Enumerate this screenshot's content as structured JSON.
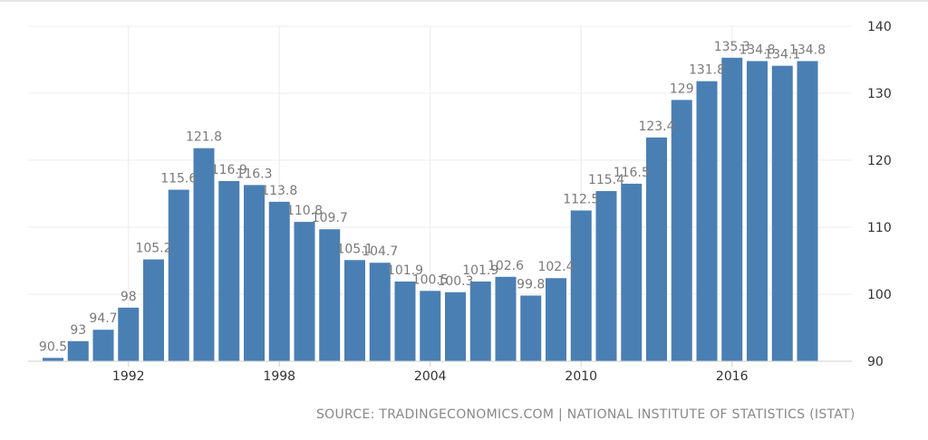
{
  "chart_data": {
    "type": "bar",
    "x": [
      1989,
      1990,
      1991,
      1992,
      1993,
      1994,
      1995,
      1996,
      1997,
      1998,
      1999,
      2000,
      2001,
      2002,
      2003,
      2004,
      2005,
      2006,
      2007,
      2008,
      2009,
      2010,
      2011,
      2012,
      2013,
      2014,
      2015,
      2016,
      2017,
      2018,
      2019
    ],
    "values": [
      90.5,
      93,
      94.7,
      98,
      105.2,
      115.6,
      121.8,
      116.9,
      116.3,
      113.8,
      110.8,
      109.7,
      105.1,
      104.7,
      101.9,
      100.5,
      100.3,
      101.9,
      102.6,
      99.8,
      102.4,
      112.5,
      115.4,
      116.5,
      123.4,
      129,
      131.8,
      135.3,
      134.8,
      134.1,
      134.8
    ],
    "data_labels": [
      "90.5",
      "93",
      "94.7",
      "98",
      "105.2",
      "115.6",
      "121.8",
      "116.9",
      "116.3",
      "113.8",
      "110.8",
      "109.7",
      "105.1",
      "104.7",
      "101.9",
      "100.5",
      "100.3",
      "101.9",
      "102.6",
      "99.8",
      "102.4",
      "112.5",
      "115.4",
      "116.5",
      "123.4",
      "129",
      "131.8",
      "135.3",
      "134.8",
      "134.1",
      "134.8"
    ],
    "x_ticks": [
      "1992",
      "1998",
      "2004",
      "2010",
      "2016"
    ],
    "y_ticks": [
      "90",
      "100",
      "110",
      "120",
      "130",
      "140"
    ],
    "ylim": [
      90,
      140
    ],
    "y_axis_position": "right",
    "grid": true,
    "bar_color": "#4a7fb3",
    "title": "",
    "xlabel": "",
    "ylabel": ""
  },
  "source_text": "SOURCE: TRADINGECONOMICS.COM | NATIONAL INSTITUTE OF STATISTICS (ISTAT)"
}
